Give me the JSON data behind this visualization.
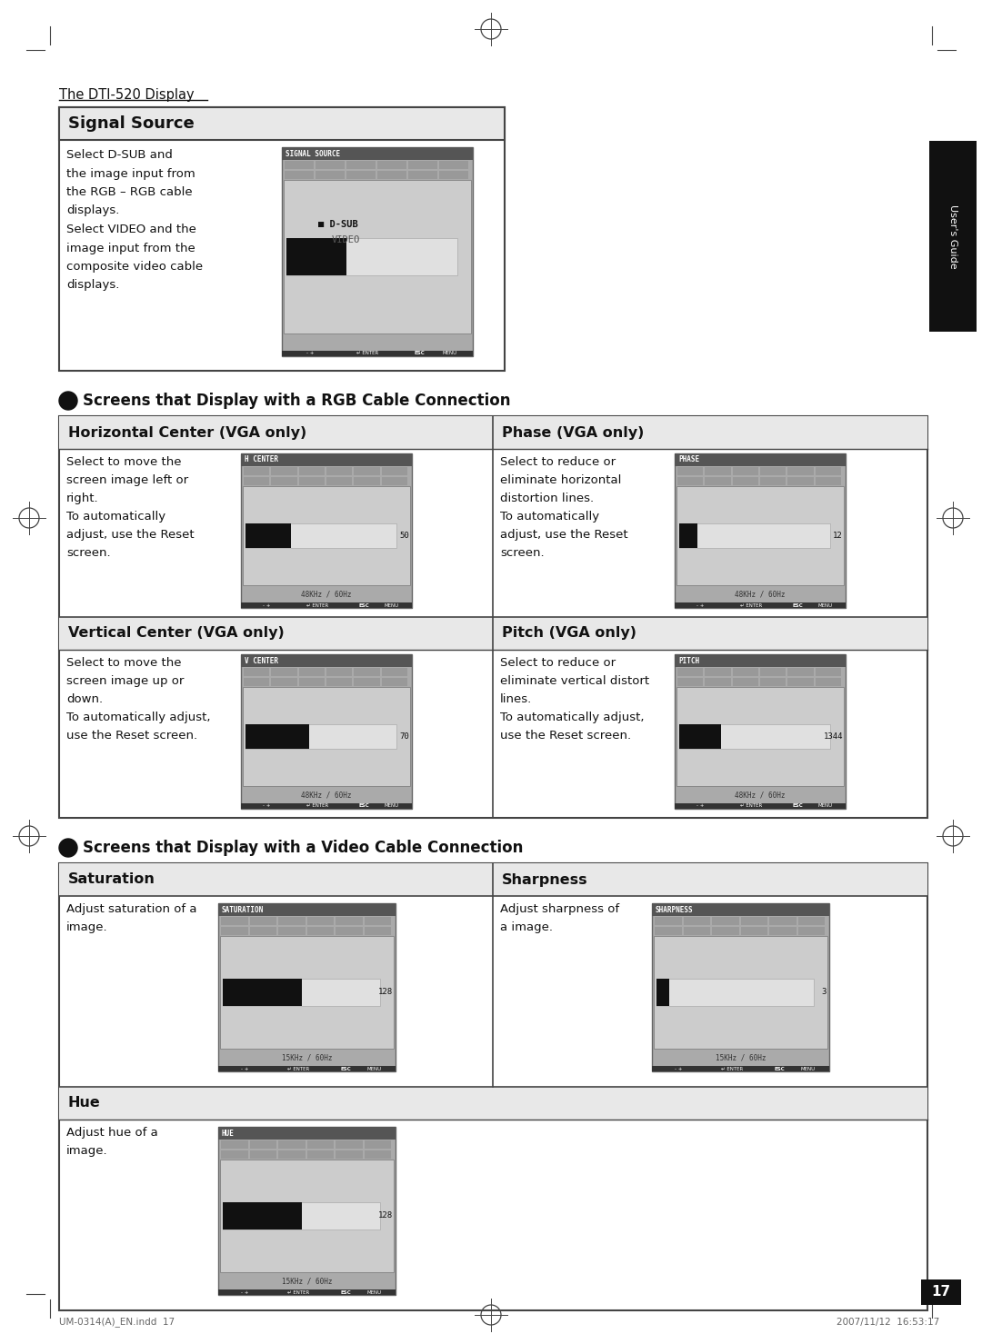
{
  "page_title": "The DTI-520 Display",
  "page_number": "17",
  "footer_left": "UM-0314(A)_EN.indd  17",
  "footer_right": "2007/11/12  16:53:17",
  "bg_color": "#ffffff",
  "section1_title": "Signal Source",
  "section1_text": "Select D-SUB and\nthe image input from\nthe RGB – RGB cable\ndisplays.\nSelect VIDEO and the\nimage input from the\ncomposite video cable\ndisplays.",
  "section1_screen_title": "SIGNAL SOURCE",
  "rgb_section_title": "Screens that Display with a RGB Cable Connection",
  "cell1_title": "Horizontal Center (VGA only)",
  "cell1_text": "Select to move the\nscreen image left or\nright.\nTo automatically\nadjust, use the Reset\nscreen.",
  "cell1_screen_title": "H CENTER",
  "cell1_value": "50",
  "cell1_freq": "48KHz / 60Hz",
  "cell2_title": "Phase (VGA only)",
  "cell2_text": "Select to reduce or\neliminate horizontal\ndistortion lines.\nTo automatically\nadjust, use the Reset\nscreen.",
  "cell2_screen_title": "PHASE",
  "cell2_value": "12",
  "cell2_freq": "48KHz / 60Hz",
  "cell3_title": "Vertical Center (VGA only)",
  "cell3_text": "Select to move the\nscreen image up or\ndown.\nTo automatically adjust,\nuse the Reset screen.",
  "cell3_screen_title": "V CENTER",
  "cell3_value": "70",
  "cell3_freq": "48KHz / 60Hz",
  "cell4_title": "Pitch (VGA only)",
  "cell4_text": "Select to reduce or\neliminate vertical distort\nlines.\nTo automatically adjust,\nuse the Reset screen.",
  "cell4_screen_title": "PITCH",
  "cell4_value": "1344",
  "cell4_freq": "48KHz / 60Hz",
  "video_section_title": "Screens that Display with a Video Cable Connection",
  "cell5_title": "Saturation",
  "cell5_text": "Adjust saturation of a\nimage.",
  "cell5_screen_title": "SATURATION",
  "cell5_value": "128",
  "cell5_freq": "15KHz / 60Hz",
  "cell6_title": "Sharpness",
  "cell6_text": "Adjust sharpness of\na image.",
  "cell6_screen_title": "SHARPNESS",
  "cell6_value": "3",
  "cell6_freq": "15KHz / 60Hz",
  "cell7_title": "Hue",
  "cell7_text": "Adjust hue of a\nimage.",
  "cell7_screen_title": "HUE",
  "cell7_value": "128",
  "cell7_freq": "15KHz / 60Hz"
}
